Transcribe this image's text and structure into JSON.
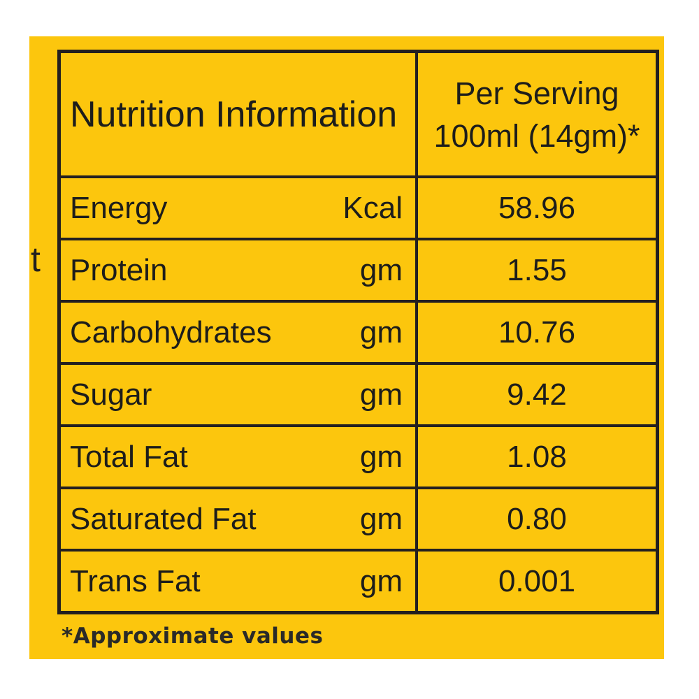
{
  "colors": {
    "page_background": "#ffffff",
    "panel_yellow": "#fcc60d",
    "table_border": "#231f20",
    "text_dark": "#1d1d1b"
  },
  "panel": {
    "edge_fragment": "t",
    "footnote": "*Approximate values"
  },
  "table": {
    "header": {
      "title": "Nutrition Information",
      "serving_line1": "Per Serving",
      "serving_line2": "100ml (14gm)*"
    },
    "rows": [
      {
        "label": "Energy",
        "unit": "Kcal",
        "value": "58.96"
      },
      {
        "label": "Protein",
        "unit": "gm",
        "value": "1.55"
      },
      {
        "label": "Carbohydrates",
        "unit": "gm",
        "value": "10.76"
      },
      {
        "label": "Sugar",
        "unit": "gm",
        "value": "9.42"
      },
      {
        "label": "Total Fat",
        "unit": "gm",
        "value": "1.08"
      },
      {
        "label": "Saturated Fat",
        "unit": "gm",
        "value": "0.80"
      },
      {
        "label": "Trans Fat",
        "unit": "gm",
        "value": "0.001"
      }
    ]
  }
}
